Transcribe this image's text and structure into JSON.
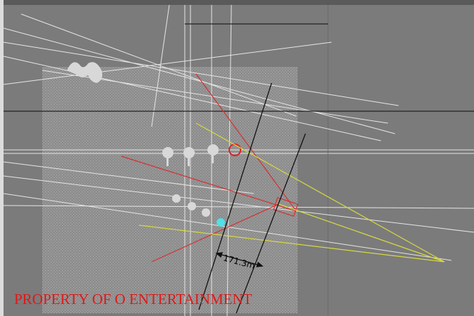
{
  "measurement": "171.3m",
  "watermark": "PROPERTY OF O ENTERTAINMENT"
}
